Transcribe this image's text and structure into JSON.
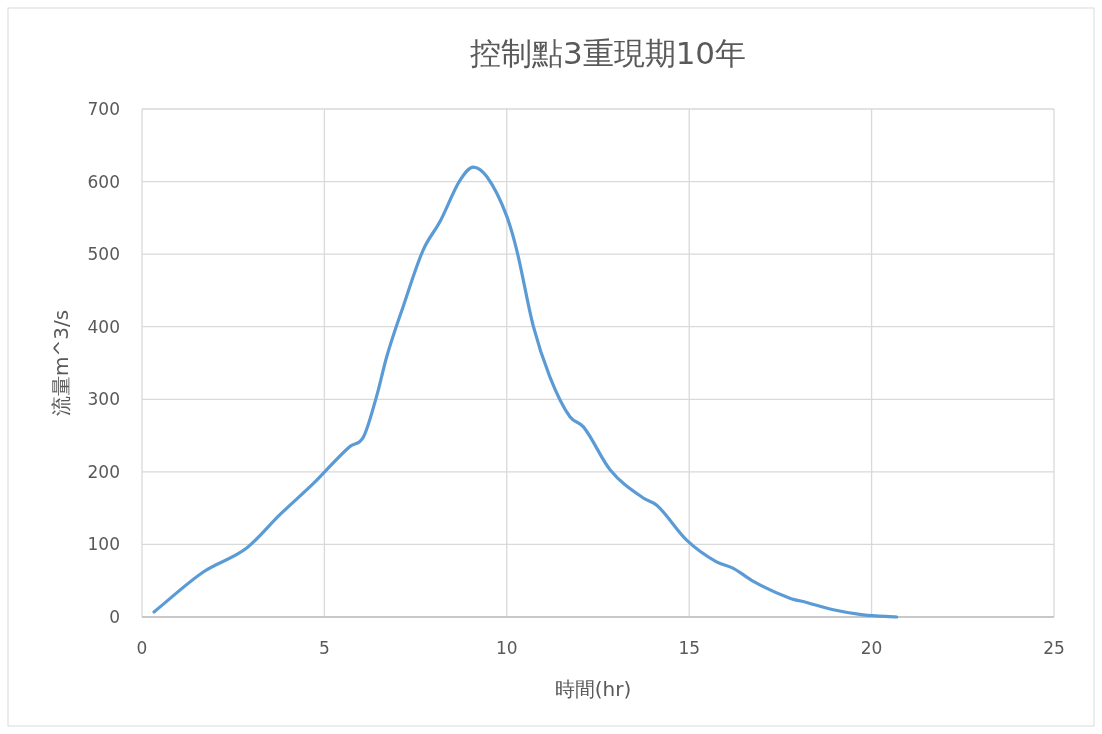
{
  "chart_data": {
    "type": "line",
    "title": "控制點3重現期10年",
    "xlabel": "時間(hr)",
    "ylabel": "流量m^3/s",
    "xlim": [
      0,
      25
    ],
    "xticks": [
      0,
      5,
      10,
      15,
      20,
      25
    ],
    "ylim": [
      0,
      700
    ],
    "yticks": [
      0,
      100,
      200,
      300,
      400,
      500,
      600,
      700
    ],
    "grid": true,
    "marker": "none",
    "line_style": "solid",
    "series": [
      {
        "color": "#5b9bd5",
        "x": [
          0.33,
          1.68,
          2.87,
          3.78,
          4.7,
          5.7,
          6.07,
          6.43,
          6.71,
          7.16,
          7.71,
          8.17,
          8.72,
          9.08,
          9.45,
          10.0,
          10.27,
          10.73,
          11.18,
          11.73,
          12.1,
          12.83,
          13.74,
          14.11,
          14.93,
          15.75,
          16.21,
          16.76,
          17.76,
          18.22,
          18.95,
          19.77,
          20.69
        ],
        "values": [
          7,
          62,
          95,
          141,
          184,
          235,
          248,
          304,
          359,
          428,
          506,
          545,
          602,
          620,
          607,
          552,
          506,
          400,
          331,
          276,
          262,
          203,
          164,
          154,
          106,
          76,
          67,
          49,
          26,
          20,
          10,
          3,
          0
        ]
      }
    ]
  }
}
